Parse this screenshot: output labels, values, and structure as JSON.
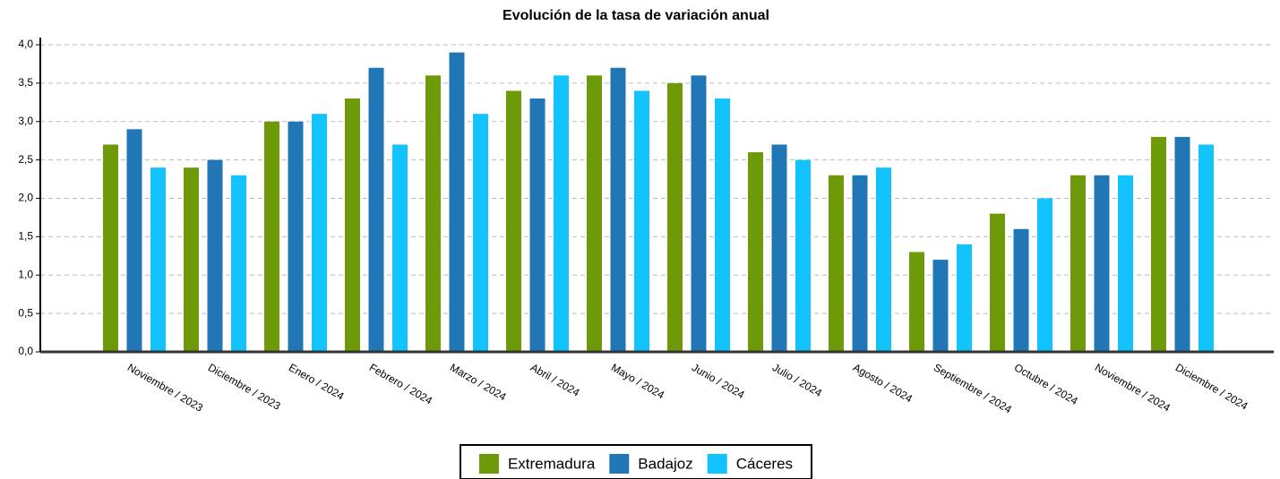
{
  "chart_data": {
    "type": "bar",
    "title": "Evolución de la tasa de variación anual",
    "categories": [
      "Noviembre / 2023",
      "Diciembre / 2023",
      "Enero / 2024",
      "Febrero / 2024",
      "Marzo / 2024",
      "Abril / 2024",
      "Mayo / 2024",
      "Junio / 2024",
      "Julio / 2024",
      "Agosto / 2024",
      "Septiembre / 2024",
      "Octubre / 2024",
      "Noviembre / 2024",
      "Diciembre / 2024"
    ],
    "series": [
      {
        "name": "Extremadura",
        "color": "#6e9a09",
        "values": [
          2.7,
          2.4,
          3.0,
          3.3,
          3.6,
          3.4,
          3.6,
          3.5,
          2.6,
          2.3,
          1.3,
          1.8,
          2.3,
          2.8
        ]
      },
      {
        "name": "Badajoz",
        "color": "#2177b5",
        "values": [
          2.9,
          2.5,
          3.0,
          3.7,
          3.9,
          3.3,
          3.7,
          3.6,
          2.7,
          2.3,
          1.2,
          1.6,
          2.3,
          2.8
        ]
      },
      {
        "name": "Cáceres",
        "color": "#12c3fd",
        "values": [
          2.4,
          2.3,
          3.1,
          2.7,
          3.1,
          3.6,
          3.4,
          3.3,
          2.5,
          2.4,
          1.4,
          2.0,
          2.3,
          2.7
        ]
      }
    ],
    "ylim": [
      0,
      4
    ],
    "yticks": [
      {
        "value": 0,
        "label": "0,0"
      },
      {
        "value": 0.5,
        "label": "0,5"
      },
      {
        "value": 1,
        "label": "1,0"
      },
      {
        "value": 1.5,
        "label": "1,5"
      },
      {
        "value": 2,
        "label": "2,0"
      },
      {
        "value": 2.5,
        "label": "2,5"
      },
      {
        "value": 3,
        "label": "3,0"
      },
      {
        "value": 3.5,
        "label": "3,5"
      },
      {
        "value": 4,
        "label": "4,0"
      }
    ],
    "grid": true,
    "legend": "bottom"
  }
}
